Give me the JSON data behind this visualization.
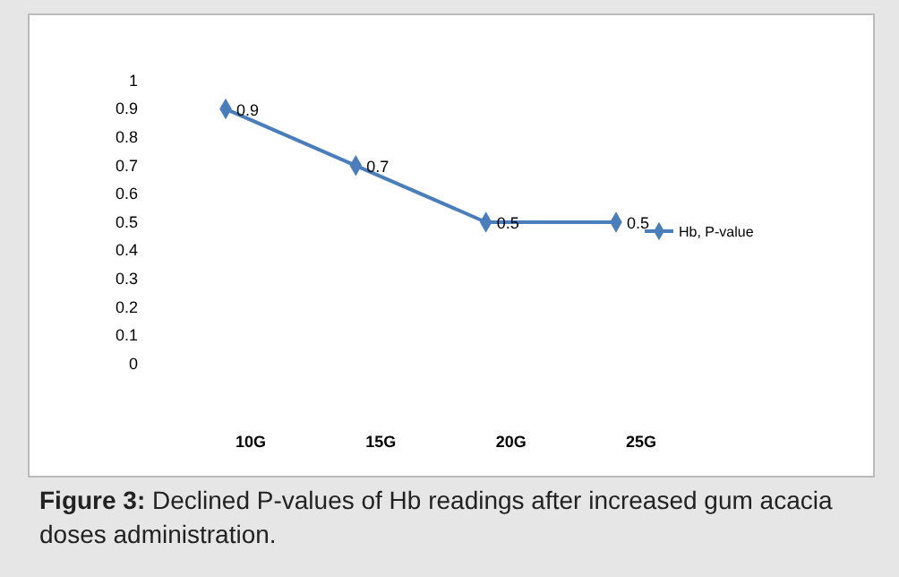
{
  "chart_data": {
    "type": "line",
    "categories": [
      "10G",
      "15G",
      "20G",
      "25G"
    ],
    "series": [
      {
        "name": "Hb, P-value",
        "color": "#4a7ebb",
        "values": [
          0.9,
          0.7,
          0.5,
          0.5
        ]
      }
    ],
    "ylim": [
      0,
      1
    ],
    "yticks": [
      0,
      0.1,
      0.2,
      0.3,
      0.4,
      0.5,
      0.6,
      0.7,
      0.8,
      0.9,
      1
    ],
    "data_labels": true,
    "marker": "diamond",
    "legend": "right",
    "grid": false,
    "annotations": [
      "Figure 3: Declined P-values of Hb readings after increased gum acacia doses administration."
    ]
  }
}
